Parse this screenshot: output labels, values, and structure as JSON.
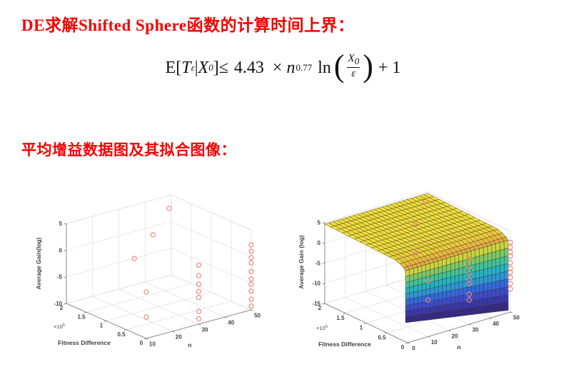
{
  "heading1": {
    "text": "DE求解Shifted Sphere函数的计算时间上界：",
    "color": "#f40000"
  },
  "heading2": {
    "text": "平均增益数据图及其拟合图像：",
    "color": "#f40000"
  },
  "formula": {
    "prefix": "E[",
    "t_var": "T",
    "t_sub": "ε",
    "pipe": "|",
    "x_var": "X",
    "x_sub": "0",
    "rel": "]≤",
    "coef": "4.43",
    "times": "×",
    "base": "n",
    "exponent": "0.77",
    "func": "ln",
    "paren_open": "(",
    "num_var": "X",
    "num_sub": "0",
    "den": "ε",
    "paren_close": ")",
    "tail": "+ 1"
  },
  "chart_data": [
    {
      "type": "scatter",
      "name": "average-gain-data-3d-scatter",
      "x_axis": {
        "label": "n",
        "ticks": [
          10,
          20,
          30,
          40,
          50
        ],
        "range": [
          10,
          50
        ]
      },
      "y_axis": {
        "label": "Fitness Difference",
        "ticks": [
          0,
          0.5,
          1,
          1.5,
          2
        ],
        "multiplier": "×10",
        "multiplier_exp": "5",
        "unit_scale": 100000
      },
      "z_axis": {
        "label": "Average Gain(log)",
        "ticks": [
          5,
          0,
          -5,
          -10
        ],
        "range": [
          -10,
          5
        ]
      },
      "marker": {
        "shape": "open-circle",
        "color": "#f0837c"
      },
      "points": [
        [
          10,
          0.3,
          4.0
        ],
        [
          10,
          0,
          -1.3
        ],
        [
          10,
          0,
          -6.0
        ],
        [
          40,
          1.8,
          -0.5
        ],
        [
          50,
          2.05,
          2.3
        ],
        [
          30,
          0,
          1.1
        ],
        [
          30,
          0,
          -0.9
        ],
        [
          30,
          0,
          -2.5
        ],
        [
          30,
          0,
          -3.9
        ],
        [
          30,
          0,
          -5.0
        ],
        [
          30,
          0,
          -7.6
        ],
        [
          30,
          0,
          -9.0
        ],
        [
          50,
          0,
          2.2
        ],
        [
          50,
          0,
          1.0
        ],
        [
          50,
          0,
          -0.2
        ],
        [
          50,
          0,
          -1.2
        ],
        [
          50,
          0,
          -2.8
        ],
        [
          50,
          0,
          -4.2
        ],
        [
          50,
          0,
          -5.2
        ],
        [
          50,
          0,
          -6.5
        ],
        [
          50,
          0,
          -8.0
        ],
        [
          50,
          0,
          -9.3
        ]
      ]
    },
    {
      "type": "surface",
      "name": "fitted-gain-surface",
      "x_axis": {
        "label": "n",
        "ticks": [
          0,
          10,
          20,
          30,
          40,
          50
        ],
        "range": [
          0,
          50
        ]
      },
      "y_axis": {
        "label": "Fitness Difference",
        "ticks": [
          0,
          0.5,
          1,
          1.5,
          2
        ],
        "multiplier": "×10",
        "multiplier_exp": "5",
        "unit_scale": 100000
      },
      "z_axis": {
        "label": "Average Gain (log)",
        "ticks": [
          5,
          0,
          -5,
          -10,
          -15
        ],
        "range": [
          -15,
          5
        ]
      },
      "surface_model": {
        "plateau_z_at_fd0": 3.9,
        "plateau_z_slope_per_1e5": 0.35,
        "cliff_bottom_z_at_n0": -10.3,
        "cliff_bottom_z_slope_per_n": -0.09,
        "cliff_fd_position": 0.05,
        "colormap": "parula"
      },
      "palette": {
        "plateau": [
          "#f3e03c",
          "#efd63b"
        ],
        "curl": [
          "#eecb3c",
          "#eab840",
          "#e7ab44"
        ],
        "cliff_bands": [
          "#c9d43e",
          "#7bca67",
          "#3fc39b",
          "#23b3c5",
          "#2b96da",
          "#3168e1",
          "#3a4bce",
          "#3936ad",
          "#352a87"
        ],
        "mesh_line": "#3a3a28"
      },
      "marker": {
        "shape": "open-circle",
        "color": "#f0837c"
      },
      "overlay_points": [
        [
          10,
          0.3,
          4.0
        ],
        [
          10,
          0,
          -1.3
        ],
        [
          10,
          0,
          -6.0
        ],
        [
          40,
          1.8,
          -0.5
        ],
        [
          50,
          2.05,
          2.3
        ],
        [
          30,
          0,
          1.1
        ],
        [
          30,
          0,
          -0.9
        ],
        [
          30,
          0,
          -2.5
        ],
        [
          30,
          0,
          -3.9
        ],
        [
          30,
          0,
          -5.0
        ],
        [
          30,
          0,
          -7.6
        ],
        [
          30,
          0,
          -9.0
        ],
        [
          50,
          0,
          2.2
        ],
        [
          50,
          0,
          1.0
        ],
        [
          50,
          0,
          -0.2
        ],
        [
          50,
          0,
          -1.2
        ],
        [
          50,
          0,
          -2.8
        ],
        [
          50,
          0,
          -4.2
        ],
        [
          50,
          0,
          -5.2
        ],
        [
          50,
          0,
          -6.5
        ],
        [
          50,
          0,
          -8.0
        ],
        [
          50,
          0,
          -9.3
        ]
      ]
    }
  ]
}
